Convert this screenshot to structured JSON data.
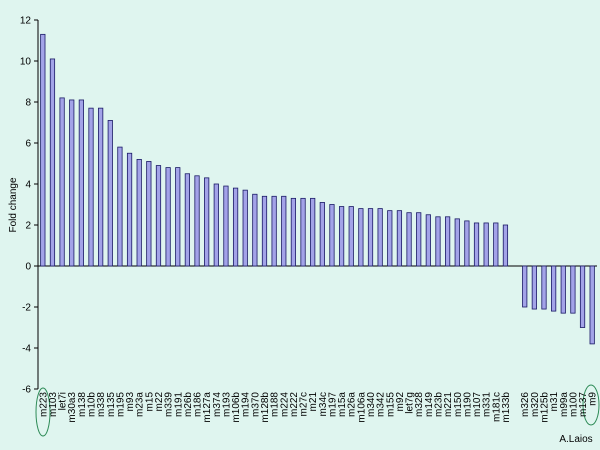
{
  "chart_data": {
    "type": "bar",
    "y_label": "Fold change",
    "annotation": "A.Laios",
    "color": "#a3a3e8",
    "categories": [
      "m223",
      "m103",
      "let7i",
      "m30a3",
      "m138",
      "m10b",
      "m338",
      "m135",
      "m195",
      "m93",
      "m23a",
      "m15",
      "m22",
      "m339",
      "m191",
      "m26b",
      "m186",
      "m127a",
      "m374",
      "m193",
      "m106b",
      "m194",
      "m370",
      "m128b",
      "m188",
      "m224",
      "m222",
      "m27c",
      "m21",
      "m34c",
      "m197",
      "m15a",
      "m26a",
      "m106a",
      "m340",
      "m342",
      "m155",
      "m92",
      "let7g",
      "m328",
      "m149",
      "m23b",
      "m221",
      "m150",
      "m190",
      "m107",
      "m331",
      "m181c",
      "m133b",
      null,
      "m326",
      "m320",
      "m125b",
      "m31",
      "m99a",
      "m100",
      "m137",
      "m9"
    ],
    "values": [
      11.3,
      10.1,
      8.2,
      8.1,
      8.1,
      7.7,
      7.7,
      7.1,
      5.8,
      5.5,
      5.2,
      5.1,
      4.9,
      4.8,
      4.8,
      4.5,
      4.4,
      4.3,
      4.0,
      3.9,
      3.8,
      3.7,
      3.5,
      3.4,
      3.4,
      3.4,
      3.3,
      3.3,
      3.3,
      3.1,
      3.0,
      2.9,
      2.9,
      2.8,
      2.8,
      2.8,
      2.7,
      2.7,
      2.6,
      2.6,
      2.5,
      2.4,
      2.4,
      2.3,
      2.2,
      2.1,
      2.1,
      2.1,
      2.0,
      null,
      -2.0,
      -2.1,
      -2.1,
      -2.2,
      -2.3,
      -2.3,
      -3.0,
      -3.8
    ],
    "ylim": [
      -6,
      12
    ],
    "yticks": [
      -6,
      -4,
      -2,
      0,
      2,
      4,
      6,
      8,
      10,
      12
    ]
  }
}
